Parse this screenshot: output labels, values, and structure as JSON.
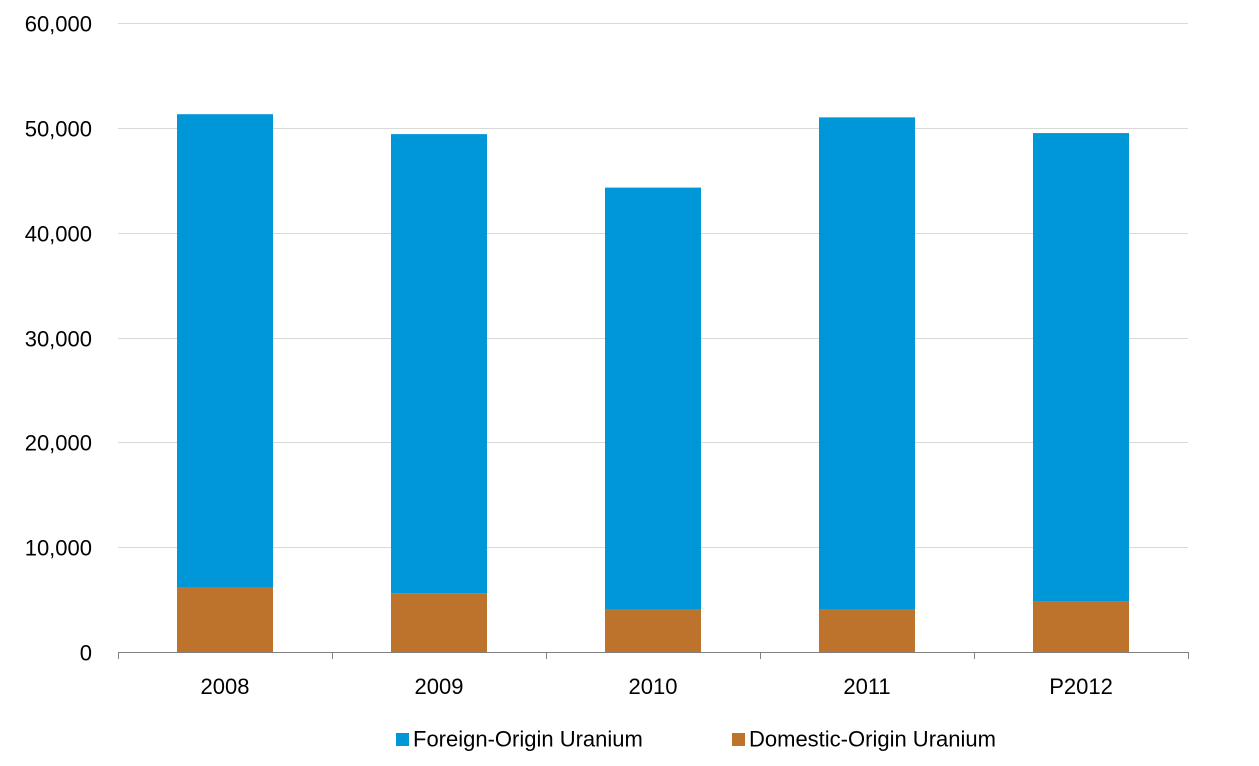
{
  "chart_data": {
    "type": "bar",
    "stacked": true,
    "categories": [
      "2008",
      "2009",
      "2010",
      "2011",
      "P2012"
    ],
    "series": [
      {
        "name": "Domestic-Origin Uranium",
        "color": "#BD732C",
        "values": [
          6200,
          5600,
          4100,
          4100,
          4800
        ]
      },
      {
        "name": "Foreign-Origin Uranium",
        "color": "#0097D9",
        "values": [
          45100,
          43800,
          40200,
          46900,
          44700
        ]
      }
    ],
    "ylim": [
      0,
      60000
    ],
    "yticks": [
      0,
      10000,
      20000,
      30000,
      40000,
      50000,
      60000
    ],
    "ytick_labels": [
      "0",
      "10,000",
      "20,000",
      "30,000",
      "40,000",
      "50,000",
      "60,000"
    ],
    "grid": true,
    "legend_position": "bottom",
    "legend_order": [
      "Foreign-Origin Uranium",
      "Domestic-Origin Uranium"
    ]
  }
}
